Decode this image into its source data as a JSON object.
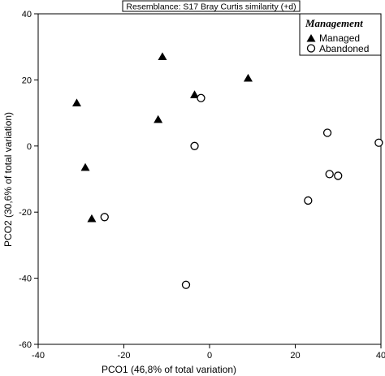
{
  "chart_data": {
    "type": "scatter",
    "title": "Resemblance: S17 Bray Curtis similarity (+d)",
    "xlabel": "PCO1 (46,8% of total variation)",
    "ylabel": "PCO2 (30,6% of total variation)",
    "xlim": [
      -40,
      40
    ],
    "ylim": [
      -60,
      40
    ],
    "xticks": [
      -40,
      -20,
      0,
      20,
      40
    ],
    "yticks": [
      -60,
      -40,
      -20,
      0,
      20,
      40
    ],
    "grid": false,
    "legend": {
      "title": "Management",
      "placement": "top-right"
    },
    "series": [
      {
        "name": "Managed",
        "marker": "filled-triangle",
        "color": "#000000",
        "points": [
          {
            "x": -31,
            "y": 13
          },
          {
            "x": -29,
            "y": -6.5
          },
          {
            "x": -27.5,
            "y": -22
          },
          {
            "x": -11,
            "y": 27
          },
          {
            "x": -12,
            "y": 8
          },
          {
            "x": -3.5,
            "y": 15.5
          },
          {
            "x": 9,
            "y": 20.5
          }
        ]
      },
      {
        "name": "Abandoned",
        "marker": "open-circle",
        "color": "#000000",
        "points": [
          {
            "x": -24.5,
            "y": -21.5
          },
          {
            "x": -2,
            "y": 14.5
          },
          {
            "x": -3.5,
            "y": 0
          },
          {
            "x": -5.5,
            "y": -42
          },
          {
            "x": 23,
            "y": -16.5
          },
          {
            "x": 27.5,
            "y": 4
          },
          {
            "x": 28,
            "y": -8.5
          },
          {
            "x": 30,
            "y": -9
          },
          {
            "x": 39.5,
            "y": 1
          }
        ]
      }
    ]
  }
}
